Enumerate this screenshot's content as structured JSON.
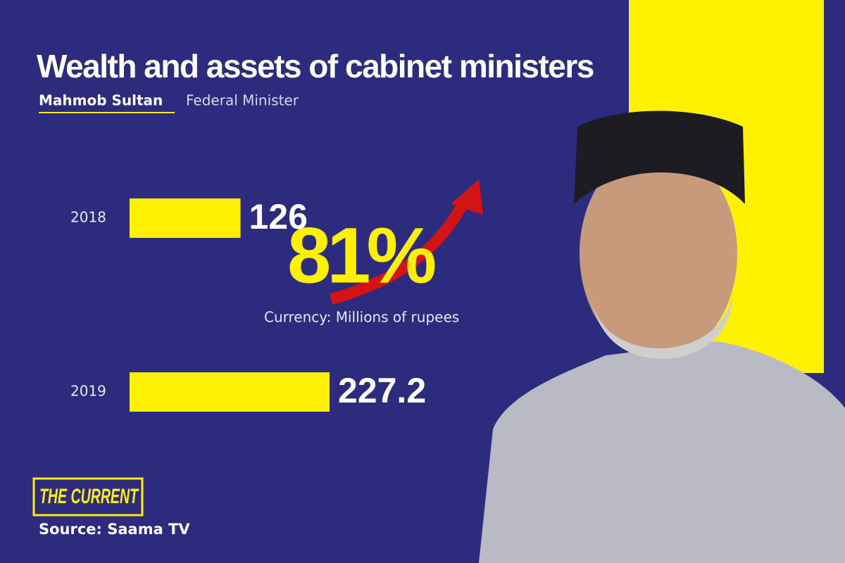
{
  "chart_data": {
    "type": "bar",
    "orientation": "horizontal",
    "title": "Wealth and assets of cabinet ministers",
    "name": "Mahmob Sultan",
    "role": "Federal Minister",
    "categories": [
      "2018",
      "2019"
    ],
    "values": [
      126,
      227.2
    ],
    "color": "#ffef00",
    "annotation": "81%",
    "note": "Currency: Millions of rupees",
    "logo": "THE CURRENT",
    "source": "Source: Saama TV"
  }
}
